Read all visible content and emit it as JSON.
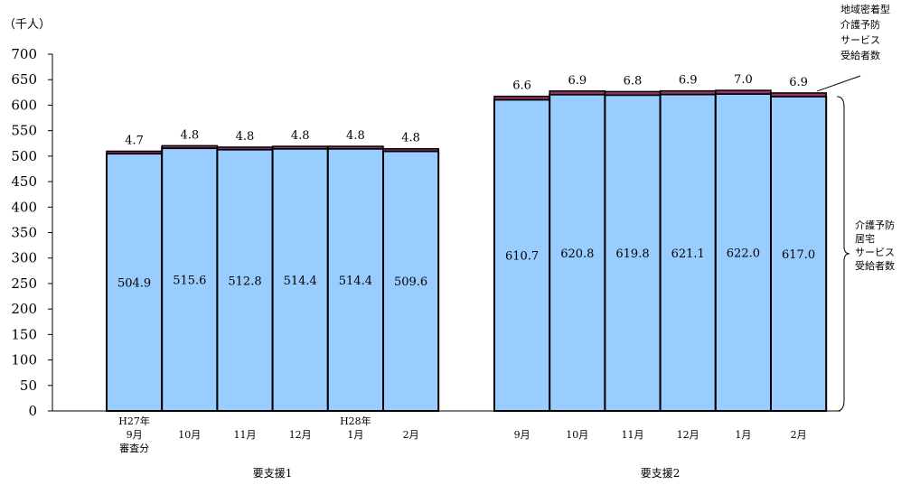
{
  "unit_label": "（千人）",
  "chart_data": {
    "type": "bar",
    "stacked": true,
    "ylim": [
      0,
      700
    ],
    "yticks": [
      0,
      50,
      100,
      150,
      200,
      250,
      300,
      350,
      400,
      450,
      500,
      550,
      600,
      650,
      700
    ],
    "grid": false,
    "groups": [
      {
        "name": "要支援1",
        "categories": [
          [
            "H27年",
            "9月",
            "審査分"
          ],
          [
            "",
            "10月"
          ],
          [
            "",
            "11月"
          ],
          [
            "",
            "12月"
          ],
          [
            "H28年",
            "1月"
          ],
          [
            "",
            "2月"
          ]
        ],
        "series": [
          {
            "name": "介護予防居宅サービス受給者数",
            "values": [
              504.9,
              515.6,
              512.8,
              514.4,
              514.4,
              509.6
            ]
          },
          {
            "name": "地域密着型介護予防サービス受給者数",
            "values": [
              4.7,
              4.8,
              4.8,
              4.8,
              4.8,
              4.8
            ]
          }
        ]
      },
      {
        "name": "要支援2",
        "categories": [
          [
            "",
            "9月"
          ],
          [
            "",
            "10月"
          ],
          [
            "",
            "11月"
          ],
          [
            "",
            "12月"
          ],
          [
            "",
            "1月"
          ],
          [
            "",
            "2月"
          ]
        ],
        "series": [
          {
            "name": "介護予防居宅サービス受給者数",
            "values": [
              610.7,
              620.8,
              619.8,
              621.1,
              622.0,
              617.0
            ]
          },
          {
            "name": "地域密着型介護予防サービス受給者数",
            "values": [
              6.6,
              6.9,
              6.8,
              6.9,
              7.0,
              6.9
            ]
          }
        ]
      }
    ],
    "annotations": {
      "top_series": [
        "地域密着型",
        "介護予防",
        "サービス",
        "受給者数"
      ],
      "bottom_series": [
        "介護予防",
        "居宅",
        "サービス",
        "受給者数"
      ]
    },
    "colors": {
      "bottom": "#99ccff",
      "top": "#993366",
      "edge": "#000000",
      "axis": "#000000"
    }
  }
}
